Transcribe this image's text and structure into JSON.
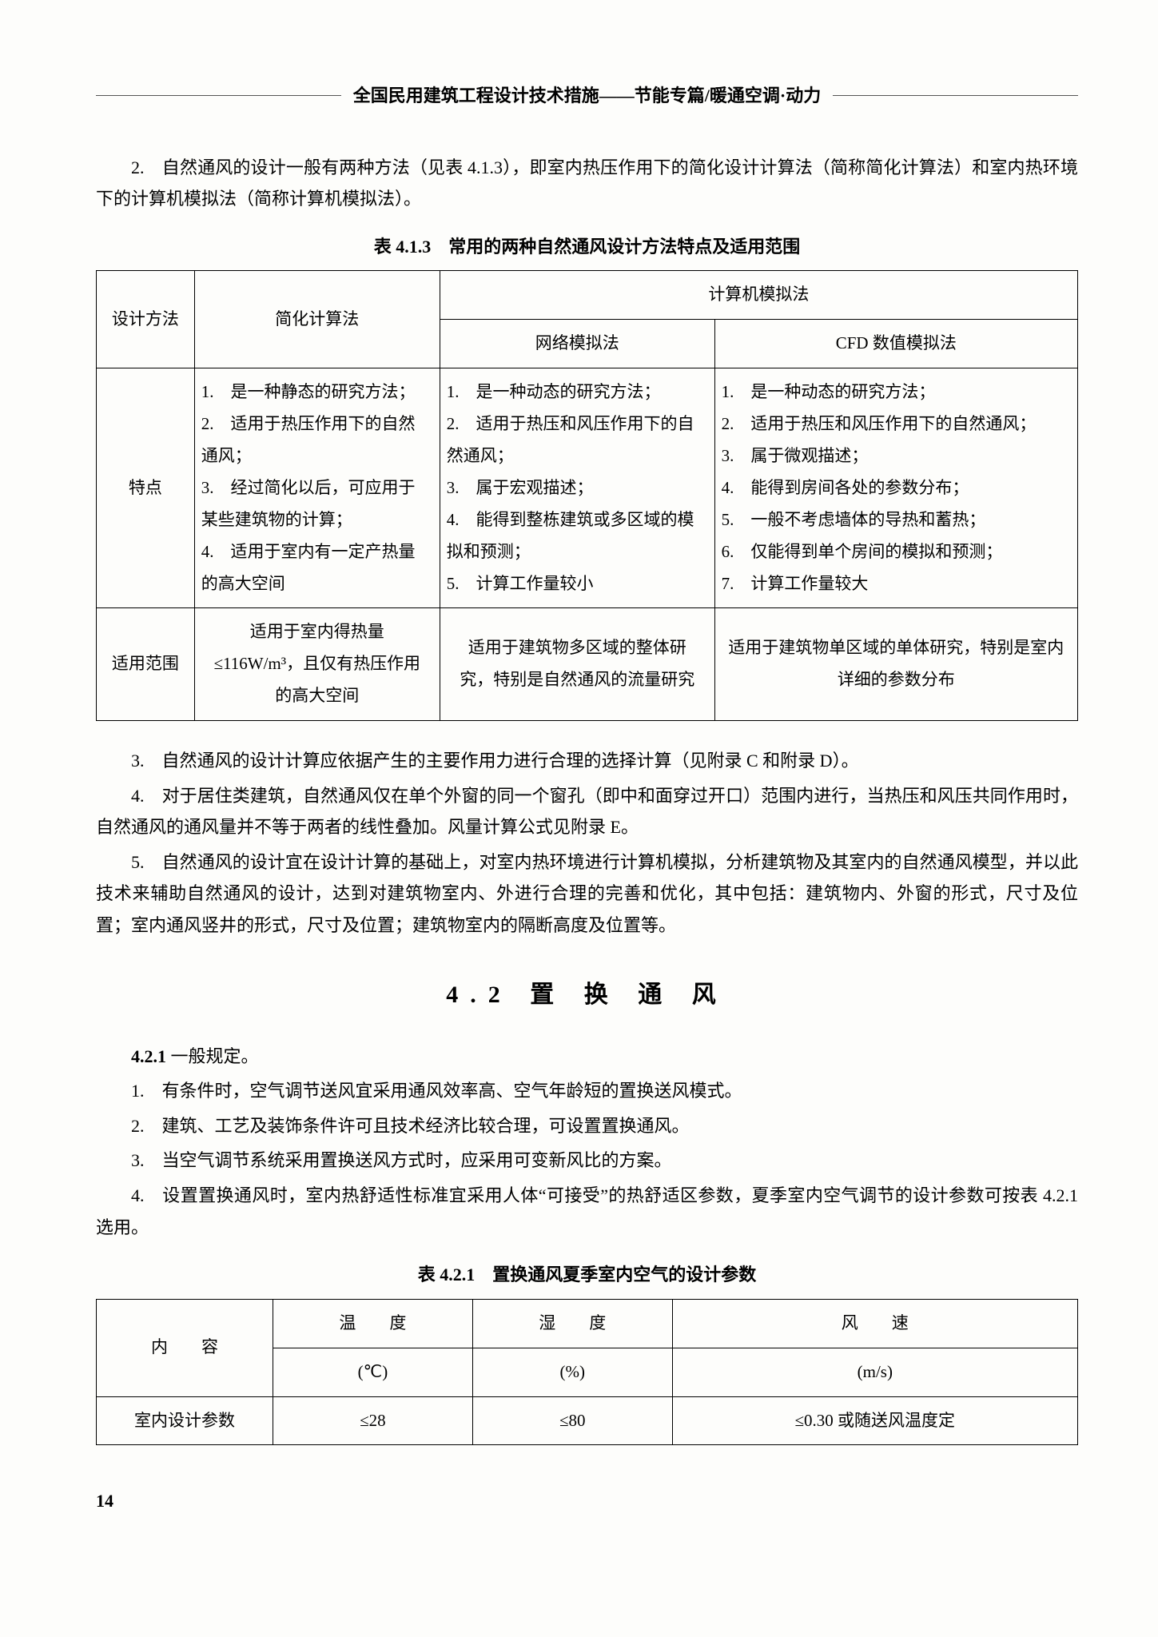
{
  "header": {
    "title": "全国民用建筑工程设计技术措施——节能专篇/暖通空调·动力"
  },
  "intro": {
    "p1": "2.　自然通风的设计一般有两种方法（见表 4.1.3），即室内热压作用下的简化设计计算法（简称简化计算法）和室内热环境下的计算机模拟法（简称计算机模拟法）。"
  },
  "table1": {
    "caption": "表 4.1.3　常用的两种自然通风设计方法特点及适用范围",
    "h_method": "设计方法",
    "h_simplified": "简化计算法",
    "h_sim_group": "计算机模拟法",
    "h_network": "网络模拟法",
    "h_cfd": "CFD 数值模拟法",
    "r_feature_label": "特点",
    "r_feature_simplified": "1.　是一种静态的研究方法；\n2.　适用于热压作用下的自然通风；\n3.　经过简化以后，可应用于某些建筑物的计算；\n4.　适用于室内有一定产热量的高大空间",
    "r_feature_network": "1.　是一种动态的研究方法；\n2.　适用于热压和风压作用下的自然通风；\n3.　属于宏观描述；\n4.　能得到整栋建筑或多区域的模拟和预测；\n5.　计算工作量较小",
    "r_feature_cfd": "1.　是一种动态的研究方法；\n2.　适用于热压和风压作用下的自然通风；\n3.　属于微观描述；\n4.　能得到房间各处的参数分布；\n5.　一般不考虑墙体的导热和蓄热；\n6.　仅能得到单个房间的模拟和预测；\n7.　计算工作量较大",
    "r_scope_label": "适用范围",
    "r_scope_simplified": "适用于室内得热量≤116W/m³，且仅有热压作用的高大空间",
    "r_scope_network": "适用于建筑物多区域的整体研究，特别是自然通风的流量研究",
    "r_scope_cfd": "适用于建筑物单区域的单体研究，特别是室内详细的参数分布"
  },
  "after_table": {
    "p3": "3.　自然通风的设计计算应依据产生的主要作用力进行合理的选择计算（见附录 C 和附录 D）。",
    "p4": "4.　对于居住类建筑，自然通风仅在单个外窗的同一个窗孔（即中和面穿过开口）范围内进行，当热压和风压共同作用时，自然通风的通风量并不等于两者的线性叠加。风量计算公式见附录 E。",
    "p5": "5.　自然通风的设计宜在设计计算的基础上，对室内热环境进行计算机模拟，分析建筑物及其室内的自然通风模型，并以此技术来辅助自然通风的设计，达到对建筑物室内、外进行合理的完善和优化，其中包括：建筑物内、外窗的形式，尺寸及位置；室内通风竖井的形式，尺寸及位置；建筑物室内的隔断高度及位置等。"
  },
  "section42": {
    "title": "4.2  置 换 通 风",
    "h421_label": "4.2.1",
    "h421_text": "一般规定。",
    "i1": "1.　有条件时，空气调节送风宜采用通风效率高、空气年龄短的置换送风模式。",
    "i2": "2.　建筑、工艺及装饰条件许可且技术经济比较合理，可设置置换通风。",
    "i3": "3.　当空气调节系统采用置换送风方式时，应采用可变新风比的方案。",
    "i4": "4.　设置置换通风时，室内热舒适性标准宜采用人体“可接受”的热舒适区参数，夏季室内空气调节的设计参数可按表 4.2.1 选用。"
  },
  "table2": {
    "caption": "表 4.2.1　置换通风夏季室内空气的设计参数",
    "h_item": "内　　容",
    "h_temp": "温　　度",
    "h_humid": "湿　　度",
    "h_wind": "风　　速",
    "u_temp": "(℃)",
    "u_humid": "(%)",
    "u_wind": "(m/s)",
    "r_label": "室内设计参数",
    "r_temp": "≤28",
    "r_humid": "≤80",
    "r_wind": "≤0.30 或随送风温度定"
  },
  "pagenum": "14"
}
